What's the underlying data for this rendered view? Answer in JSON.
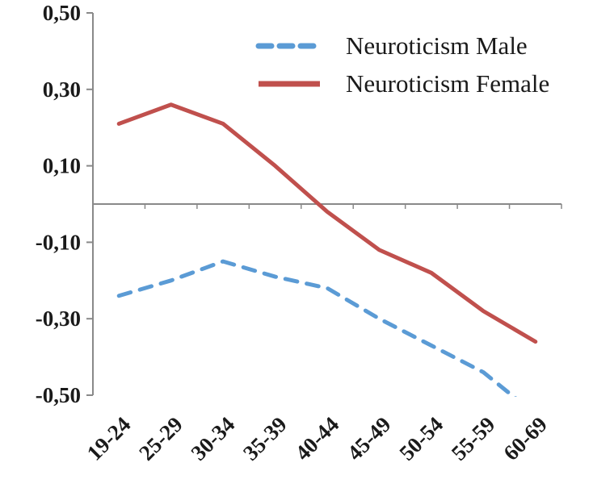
{
  "chart_data": {
    "type": "line",
    "title": "",
    "xlabel": "",
    "ylabel": "",
    "categories": [
      "19-24",
      "25-29",
      "30-34",
      "35-39",
      "40-44",
      "45-49",
      "50-54",
      "55-59",
      "60-69"
    ],
    "series": [
      {
        "name": "Neuroticism Male",
        "color": "#5B9BD5",
        "line_style": "dashed",
        "values": [
          -0.24,
          -0.2,
          -0.15,
          -0.19,
          -0.22,
          -0.3,
          -0.37,
          -0.44,
          -0.55
        ]
      },
      {
        "name": "Neuroticism Female",
        "color": "#C0504D",
        "line_style": "solid",
        "values": [
          0.21,
          0.26,
          0.21,
          0.1,
          -0.02,
          -0.12,
          -0.18,
          -0.28,
          -0.36
        ]
      }
    ],
    "ylim": [
      -0.5,
      0.5
    ],
    "yticks": [
      0.5,
      0.3,
      0.1,
      -0.1,
      -0.3,
      -0.5
    ],
    "ytick_labels": [
      "0,50",
      "0,30",
      "0,10",
      "-0,10",
      "-0,30",
      "-0,50"
    ],
    "decimal_separator": ",",
    "grid": false,
    "legend_position": "top-right",
    "colors": {
      "axis": "#898989",
      "text": "#1A1A1A",
      "background": "#FFFFFF"
    }
  }
}
